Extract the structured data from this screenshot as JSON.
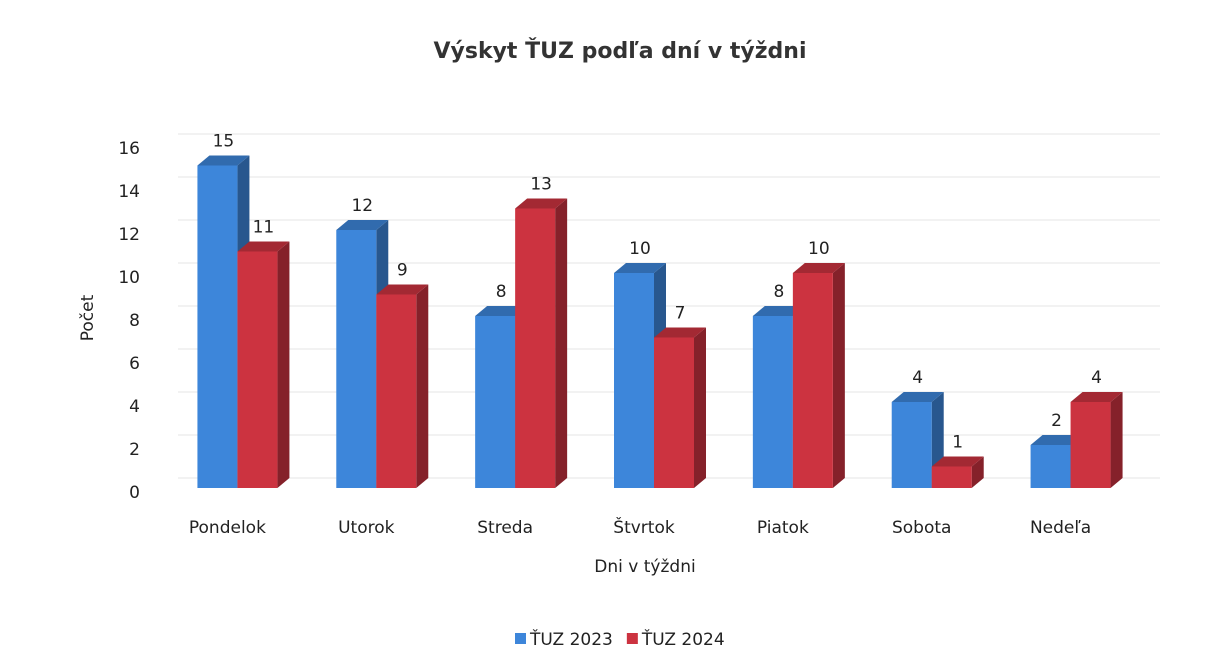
{
  "chart_data": {
    "type": "bar3d",
    "title": "Výskyt ŤUZ podľa dní v týždni",
    "x_label": "Dni v týždni",
    "y_label": "Počet",
    "categories": [
      "Pondelok",
      "Utorok",
      "Streda",
      "Štvrtok",
      "Piatok",
      "Sobota",
      "Nedeľa"
    ],
    "series": [
      {
        "name": "ŤUZ 2023",
        "color": "#3d86da",
        "values": [
          15,
          12,
          8,
          10,
          8,
          4,
          2
        ]
      },
      {
        "name": "ŤUZ 2024",
        "color": "#cc3340",
        "values": [
          11,
          9,
          13,
          7,
          10,
          1,
          4
        ]
      }
    ],
    "ylim": [
      0,
      16
    ],
    "yticks": [
      0,
      2,
      4,
      6,
      8,
      10,
      12,
      14,
      16
    ],
    "grid": true,
    "legend": "bottom"
  }
}
